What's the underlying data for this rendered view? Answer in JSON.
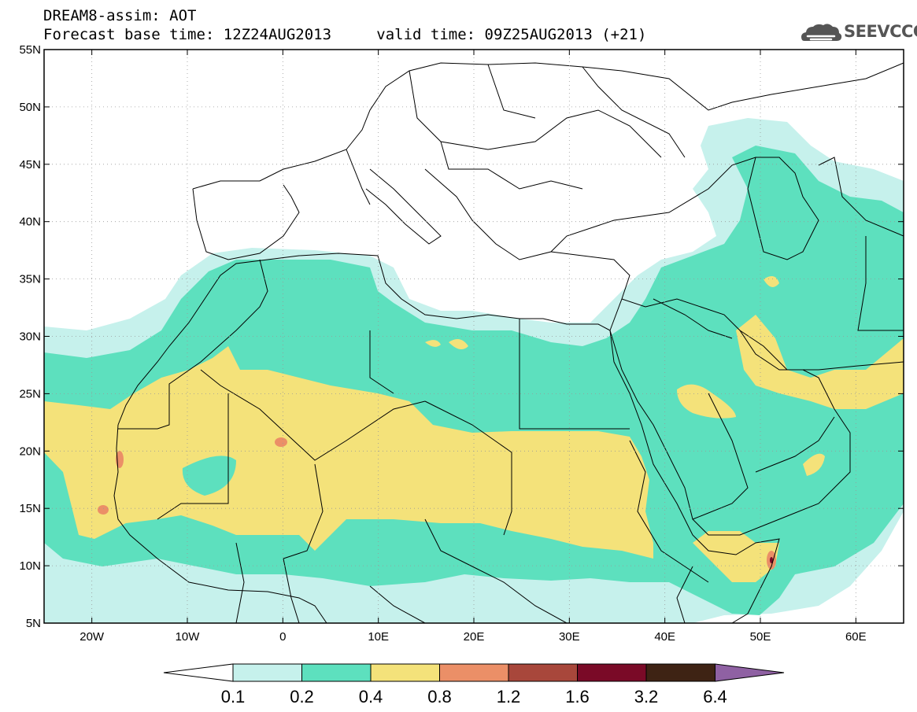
{
  "title": {
    "line1": "DREAM8-assim: AOT",
    "base_label": "Forecast base time: 12Z24AUG2013",
    "valid_label": "valid time: 09Z25AUG2013 (+21)"
  },
  "logo": {
    "text": "SEEVCCC",
    "icon": "cloud-logo-icon"
  },
  "map": {
    "lon_labels": [
      "20W",
      "10W",
      "0",
      "10E",
      "20E",
      "30E",
      "40E",
      "50E",
      "60E"
    ],
    "lat_labels": [
      "55N",
      "50N",
      "45N",
      "40N",
      "35N",
      "30N",
      "25N",
      "20N",
      "15N",
      "10N",
      "5N"
    ],
    "lon_range": [
      -25,
      65
    ],
    "lat_range": [
      5,
      55
    ],
    "grid": "dotted"
  },
  "colorbar": {
    "levels": [
      "0.1",
      "0.2",
      "0.4",
      "0.8",
      "1.2",
      "1.6",
      "3.2",
      "6.4"
    ],
    "colors": [
      "#ffffff",
      "#c6f1ec",
      "#5de0be",
      "#f4e27a",
      "#eb8f67",
      "#a8473b",
      "#7a0a27",
      "#3e2314",
      "#8f61a3"
    ]
  }
}
